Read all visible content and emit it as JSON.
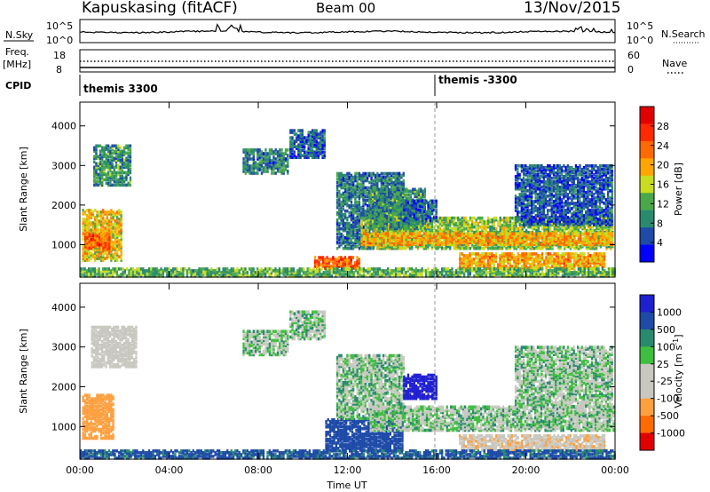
{
  "header": {
    "station": "Kapuskasing (fitACF)",
    "beam": "Beam 00",
    "date": "13/Nov/2015"
  },
  "noise_panel": {
    "left_label": "N.Sky",
    "left_ticks": [
      "10^5",
      "10^0"
    ],
    "right_ticks": [
      "10^5",
      "10^0"
    ],
    "right_label": "N.Search"
  },
  "freq_panel": {
    "left_label_1": "Freq.",
    "left_label_2": "[MHz]",
    "left_ticks": [
      "18",
      "8"
    ],
    "right_ticks": [
      "60",
      "0"
    ],
    "right_label": "Nave"
  },
  "cpid": {
    "label": "CPID",
    "programs": [
      {
        "name": "themis 3300",
        "start_hour": 0
      },
      {
        "name": "themis -3300",
        "start_hour": 15.92
      }
    ]
  },
  "time_axis": {
    "label": "Time UT",
    "ticks": [
      "00:00",
      "04:00",
      "08:00",
      "12:00",
      "16:00",
      "20:00",
      "00:00"
    ],
    "range_hours": [
      0,
      24
    ]
  },
  "colors": {
    "power_scale": [
      "#0000ff",
      "#1e4aa8",
      "#2a8a6e",
      "#4aa84a",
      "#c8dc20",
      "#ffa500",
      "#ff6a00",
      "#ff2a00",
      "#e00000"
    ],
    "velocity_scale": [
      "#e00000",
      "#ff6a00",
      "#ffa040",
      "#c8c8c0",
      "#c8c8c0",
      "#3fbf3f",
      "#2a8a6e",
      "#1e4aa8",
      "#2020d0"
    ]
  },
  "chart_data": [
    {
      "type": "heatmap",
      "panel": "power",
      "ylabel": "Slant Range [km]",
      "yticks": [
        1000,
        2000,
        3000,
        4000
      ],
      "ylim": [
        180,
        4600
      ],
      "colorbar_label": "Power [dB]",
      "colorbar_ticks": [
        "4",
        "8",
        "12",
        "16",
        "20",
        "24",
        "28"
      ],
      "colorbar_range": [
        0,
        32
      ],
      "regions": [
        {
          "t0": 0.1,
          "t1": 1.9,
          "r0": 600,
          "r1": 1900,
          "value": 18
        },
        {
          "t0": 0.2,
          "t1": 1.3,
          "r0": 900,
          "r1": 1300,
          "value": 24
        },
        {
          "t0": 0.6,
          "t1": 2.3,
          "r0": 2500,
          "r1": 3500,
          "value": 10
        },
        {
          "t0": 7.3,
          "t1": 9.3,
          "r0": 2800,
          "r1": 3400,
          "value": 8
        },
        {
          "t0": 9.4,
          "t1": 11.0,
          "r0": 3200,
          "r1": 3900,
          "value": 6
        },
        {
          "t0": 10.5,
          "t1": 12.5,
          "r0": 400,
          "r1": 700,
          "value": 24
        },
        {
          "t0": 11.5,
          "t1": 14.5,
          "r0": 900,
          "r1": 2800,
          "value": 8
        },
        {
          "t0": 12.6,
          "t1": 23.9,
          "r0": 900,
          "r1": 1700,
          "value": 14
        },
        {
          "t0": 12.6,
          "t1": 23.9,
          "r0": 1000,
          "r1": 1300,
          "value": 20
        },
        {
          "t0": 13.0,
          "t1": 15.5,
          "r0": 1400,
          "r1": 2400,
          "value": 10
        },
        {
          "t0": 14.5,
          "t1": 16.0,
          "r0": 1600,
          "r1": 2100,
          "value": 6
        },
        {
          "t0": 17.0,
          "t1": 23.5,
          "r0": 400,
          "r1": 800,
          "value": 20
        },
        {
          "t0": 19.5,
          "t1": 23.9,
          "r0": 1500,
          "r1": 3000,
          "value": 6
        },
        {
          "t0": 0.0,
          "t1": 24.0,
          "r0": 200,
          "r1": 400,
          "value": 12
        }
      ]
    },
    {
      "type": "heatmap",
      "panel": "velocity",
      "ylabel": "Slant Range [km]",
      "yticks": [
        1000,
        2000,
        3000,
        4000
      ],
      "ylim": [
        180,
        4600
      ],
      "colorbar_label": "Velocity [m s^-1]",
      "colorbar_ticks": [
        "-1000",
        "-500",
        "-100",
        "-25",
        "25",
        "100",
        "500",
        "1000"
      ],
      "regions": [
        {
          "t0": 0.1,
          "t1": 1.5,
          "r0": 700,
          "r1": 1800,
          "value": -300
        },
        {
          "t0": 0.5,
          "t1": 2.5,
          "r0": 2500,
          "r1": 3500,
          "value": -50
        },
        {
          "t0": 7.3,
          "t1": 9.3,
          "r0": 2800,
          "r1": 3400,
          "value": 0
        },
        {
          "t0": 9.4,
          "t1": 11.0,
          "r0": 3200,
          "r1": 3900,
          "value": 0
        },
        {
          "t0": 11.0,
          "t1": 14.5,
          "r0": 400,
          "r1": 1200,
          "value": 150
        },
        {
          "t0": 11.5,
          "t1": 14.5,
          "r0": 1200,
          "r1": 2800,
          "value": 0
        },
        {
          "t0": 13.0,
          "t1": 23.9,
          "r0": 900,
          "r1": 1500,
          "value": 0
        },
        {
          "t0": 14.5,
          "t1": 16.0,
          "r0": 1700,
          "r1": 2300,
          "value": 600
        },
        {
          "t0": 17.0,
          "t1": 23.5,
          "r0": 400,
          "r1": 800,
          "value": -80
        },
        {
          "t0": 19.5,
          "t1": 23.9,
          "r0": 1500,
          "r1": 3000,
          "value": 0
        },
        {
          "t0": 0.0,
          "t1": 24.0,
          "r0": 200,
          "r1": 400,
          "value": 120
        }
      ]
    }
  ]
}
